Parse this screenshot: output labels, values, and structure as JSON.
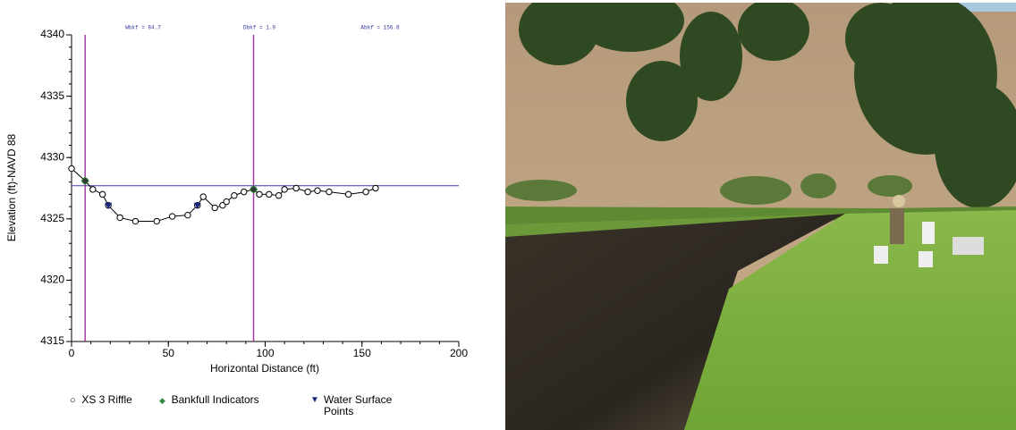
{
  "chart_data": {
    "type": "line",
    "annotations": [
      "Wbkf = 84.7",
      "Dbkf = 1.9",
      "Abkf = 156.8"
    ],
    "xlabel": "Horizontal Distance (ft)",
    "ylabel": "Elevation (ft)-NAVD 88",
    "xlim": [
      0,
      200
    ],
    "ylim": [
      4315,
      4340
    ],
    "xticks": [
      0,
      50,
      100,
      150,
      200
    ],
    "yticks": [
      4315,
      4320,
      4325,
      4330,
      4335,
      4340
    ],
    "bankfull_elevation": 4327.7,
    "bankfull_lines": [
      7,
      94
    ],
    "series": [
      {
        "name": "XS 3 Riffle",
        "color": "#000000",
        "x": [
          0,
          7,
          11,
          16,
          19,
          25,
          33,
          44,
          52,
          60,
          65,
          68,
          74,
          78,
          80,
          84,
          89,
          94,
          97,
          102,
          107,
          110,
          116,
          122,
          127,
          133,
          143,
          152,
          157
        ],
        "values": [
          4329.1,
          4328.1,
          4327.4,
          4327.0,
          4326.1,
          4325.1,
          4324.8,
          4324.8,
          4325.2,
          4325.3,
          4326.1,
          4326.8,
          4325.9,
          4326.1,
          4326.4,
          4326.9,
          4327.2,
          4327.4,
          4327.0,
          4327.0,
          4326.9,
          4327.4,
          4327.5,
          4327.2,
          4327.3,
          4327.2,
          4327.0,
          4327.2,
          4327.5
        ]
      },
      {
        "name": "Bankfull Indicators",
        "color": "#2e8b3e",
        "x": [
          7,
          94
        ],
        "values": [
          4328.1,
          4327.4
        ]
      },
      {
        "name": "Water Surface Points",
        "color": "#1a237e",
        "x": [
          19,
          65
        ],
        "values": [
          4326.1,
          4326.1
        ]
      }
    ]
  }
}
